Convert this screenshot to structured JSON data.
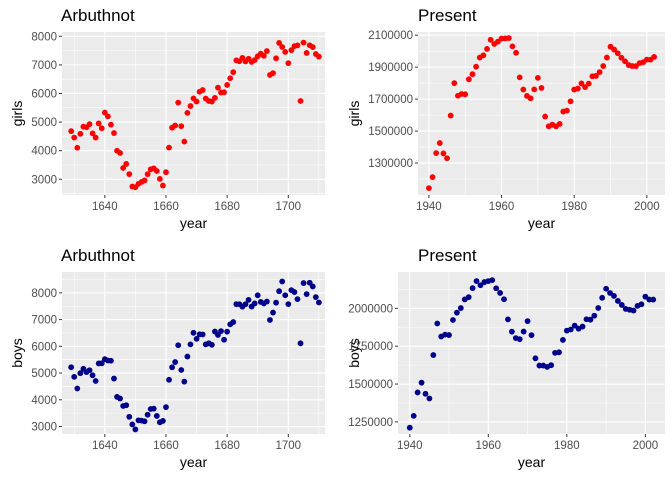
{
  "style": {
    "panel_bg": "#ebebeb",
    "grid_major": "#ffffff",
    "tick_color": "#333333",
    "girls_color": "#ff0000",
    "boys_color": "#00008b"
  },
  "chart_data": [
    {
      "type": "scatter",
      "title": "Arbuthnot",
      "xlabel": "year",
      "ylabel": "girls",
      "color": "#ff0000",
      "xlim": [
        1626,
        1712
      ],
      "ylim": [
        2450,
        8150
      ],
      "xticks": [
        1640,
        1660,
        1680,
        1700
      ],
      "yticks": [
        3000,
        4000,
        5000,
        6000,
        7000,
        8000
      ],
      "x": [
        1629,
        1630,
        1631,
        1632,
        1633,
        1634,
        1635,
        1636,
        1637,
        1638,
        1639,
        1640,
        1641,
        1642,
        1643,
        1644,
        1645,
        1646,
        1647,
        1648,
        1649,
        1650,
        1651,
        1652,
        1653,
        1654,
        1655,
        1656,
        1657,
        1658,
        1659,
        1660,
        1661,
        1662,
        1663,
        1664,
        1665,
        1666,
        1667,
        1668,
        1669,
        1670,
        1671,
        1672,
        1673,
        1674,
        1675,
        1676,
        1677,
        1678,
        1679,
        1680,
        1681,
        1682,
        1683,
        1684,
        1685,
        1686,
        1687,
        1688,
        1689,
        1690,
        1691,
        1692,
        1693,
        1694,
        1695,
        1696,
        1697,
        1698,
        1699,
        1700,
        1701,
        1702,
        1703,
        1704,
        1705,
        1706,
        1707,
        1708,
        1709,
        1710
      ],
      "y": [
        4683,
        4457,
        4102,
        4590,
        4839,
        4820,
        4928,
        4605,
        4457,
        4952,
        4784,
        5332,
        5200,
        4910,
        4617,
        3997,
        3919,
        3395,
        3536,
        3181,
        2746,
        2722,
        2840,
        2908,
        2959,
        3179,
        3349,
        3382,
        3289,
        3013,
        2781,
        3247,
        4107,
        4803,
        4881,
        5681,
        4858,
        4319,
        5322,
        5560,
        5829,
        5719,
        6061,
        6120,
        5822,
        5738,
        5717,
        5847,
        6203,
        6033,
        6041,
        6299,
        6533,
        6744,
        7158,
        7127,
        7246,
        7119,
        7214,
        7101,
        7167,
        7302,
        7392,
        7316,
        7483,
        6647,
        6713,
        7229,
        7767,
        7626,
        7452,
        7061,
        7514,
        7656,
        7683,
        5738,
        7779,
        7417,
        7687,
        7623,
        7380,
        7288
      ],
      "y_note": "values read off the plot"
    },
    {
      "type": "scatter",
      "title": "Present",
      "xlabel": "year",
      "ylabel": "girls",
      "color": "#ff0000",
      "xlim": [
        1937,
        2005
      ],
      "ylim": [
        1100000,
        2120000
      ],
      "xticks": [
        1940,
        1960,
        1980,
        2000
      ],
      "xtick_labels": [
        "1940",
        "1960",
        "1980",
        "2000"
      ],
      "yticks": [
        1300000,
        1500000,
        1700000,
        1900000,
        2100000
      ],
      "ytick_labels": [
        "1300000",
        "1500000",
        "1700000",
        "1900000",
        "2100000"
      ],
      "x": [
        1940,
        1941,
        1942,
        1943,
        1944,
        1945,
        1946,
        1947,
        1948,
        1949,
        1950,
        1951,
        1952,
        1953,
        1954,
        1955,
        1956,
        1957,
        1958,
        1959,
        1960,
        1961,
        1962,
        1963,
        1964,
        1965,
        1966,
        1967,
        1968,
        1969,
        1970,
        1971,
        1972,
        1973,
        1974,
        1975,
        1976,
        1977,
        1978,
        1979,
        1980,
        1981,
        1982,
        1983,
        1984,
        1985,
        1986,
        1987,
        1988,
        1989,
        1990,
        1991,
        1992,
        1993,
        1994,
        1995,
        1996,
        1997,
        1998,
        1999,
        2000,
        2001,
        2002
      ],
      "y": [
        1143000,
        1212000,
        1362000,
        1425000,
        1360000,
        1330000,
        1597000,
        1800000,
        1721000,
        1732000,
        1730000,
        1824000,
        1856000,
        1903000,
        1960000,
        1974000,
        2014000,
        2071000,
        2045000,
        2060000,
        2079000,
        2080000,
        2082000,
        2030000,
        1990000,
        1836000,
        1760000,
        1720000,
        1705000,
        1761000,
        1833000,
        1770000,
        1591000,
        1530000,
        1540000,
        1530000,
        1545000,
        1622000,
        1628000,
        1686000,
        1760000,
        1766000,
        1798000,
        1775000,
        1797000,
        1843000,
        1845000,
        1869000,
        1907000,
        1960000,
        2028000,
        2010000,
        1987000,
        1959000,
        1937000,
        1913000,
        1907000,
        1906000,
        1925000,
        1931000,
        1947000,
        1947000,
        1964000
      ]
    },
    {
      "type": "scatter",
      "title": "Arbuthnot",
      "xlabel": "year",
      "ylabel": "boys",
      "color": "#00008b",
      "xlim": [
        1626,
        1712
      ],
      "ylim": [
        2720,
        8780
      ],
      "xticks": [
        1640,
        1660,
        1680,
        1700
      ],
      "yticks": [
        3000,
        4000,
        5000,
        6000,
        7000,
        8000
      ],
      "x": [
        1629,
        1630,
        1631,
        1632,
        1633,
        1634,
        1635,
        1636,
        1637,
        1638,
        1639,
        1640,
        1641,
        1642,
        1643,
        1644,
        1645,
        1646,
        1647,
        1648,
        1649,
        1650,
        1651,
        1652,
        1653,
        1654,
        1655,
        1656,
        1657,
        1658,
        1659,
        1660,
        1661,
        1662,
        1663,
        1664,
        1665,
        1666,
        1667,
        1668,
        1669,
        1670,
        1671,
        1672,
        1673,
        1674,
        1675,
        1676,
        1677,
        1678,
        1679,
        1680,
        1681,
        1682,
        1683,
        1684,
        1685,
        1686,
        1687,
        1688,
        1689,
        1690,
        1691,
        1692,
        1693,
        1694,
        1695,
        1696,
        1697,
        1698,
        1699,
        1700,
        1701,
        1702,
        1703,
        1704,
        1705,
        1706,
        1707,
        1708,
        1709,
        1710
      ],
      "y": [
        5218,
        4858,
        4422,
        4994,
        5158,
        5035,
        5106,
        4917,
        4703,
        5359,
        5366,
        5518,
        5470,
        5460,
        4793,
        4107,
        4047,
        3768,
        3796,
        3363,
        3079,
        2890,
        3231,
        3220,
        3196,
        3441,
        3655,
        3668,
        3396,
        3157,
        3209,
        3724,
        4748,
        5216,
        5411,
        6041,
        5114,
        4678,
        5616,
        6073,
        6506,
        6278,
        6449,
        6443,
        6073,
        6113,
        6058,
        6552,
        6423,
        6568,
        6247,
        6548,
        6822,
        6909,
        7577,
        7575,
        7484,
        7575,
        7737,
        7487,
        7604,
        7909,
        7662,
        7602,
        7676,
        6985,
        7263,
        7632,
        8062,
        8426,
        7911,
        7578,
        8102,
        8031,
        7765,
        6113,
        8366,
        7952,
        8379,
        8239,
        7840,
        7640
      ]
    },
    {
      "type": "scatter",
      "title": "Present",
      "xlabel": "year",
      "ylabel": "boys",
      "color": "#00008b",
      "xlim": [
        1937,
        2005
      ],
      "ylim": [
        1170000,
        2240000
      ],
      "xticks": [
        1940,
        1960,
        1980,
        2000
      ],
      "xtick_labels": [
        "1940",
        "1960",
        "1980",
        "2000"
      ],
      "yticks": [
        1250000,
        1500000,
        1750000,
        2000000
      ],
      "ytick_labels": [
        "1250000",
        "1500000",
        "1750000",
        "2000000"
      ],
      "x": [
        1940,
        1941,
        1942,
        1943,
        1944,
        1945,
        1946,
        1947,
        1948,
        1949,
        1950,
        1951,
        1952,
        1953,
        1954,
        1955,
        1956,
        1957,
        1958,
        1959,
        1960,
        1961,
        1962,
        1963,
        1964,
        1965,
        1966,
        1967,
        1968,
        1969,
        1970,
        1971,
        1972,
        1973,
        1974,
        1975,
        1976,
        1977,
        1978,
        1979,
        1980,
        1981,
        1982,
        1983,
        1984,
        1985,
        1986,
        1987,
        1988,
        1989,
        1990,
        1991,
        1992,
        1993,
        1994,
        1995,
        1996,
        1997,
        1998,
        1999,
        2000,
        2001,
        2002
      ],
      "y": [
        1211684,
        1289734,
        1444365,
        1508959,
        1435301,
        1404587,
        1691220,
        1899876,
        1813852,
        1826352,
        1823555,
        1923020,
        1971262,
        2001798,
        2059068,
        2073719,
        2133588,
        2179960,
        2152546,
        2173638,
        2179708,
        2186274,
        2132466,
        2101632,
        2060162,
        1927054,
        1845862,
        1803388,
        1796326,
        1846572,
        1915378,
        1822910,
        1669927,
        1622114,
        1622114,
        1613135,
        1624436,
        1705916,
        1709394,
        1791267,
        1852616,
        1860272,
        1885676,
        1865553,
        1879490,
        1927983,
        1924868,
        1951153,
        2002424,
        2069490,
        2129495,
        2101518,
        2082097,
        2048861,
        2022589,
        1996355,
        1990480,
        1985596,
        2016205,
        2026854,
        2076969,
        2057922,
        2057979
      ]
    }
  ]
}
